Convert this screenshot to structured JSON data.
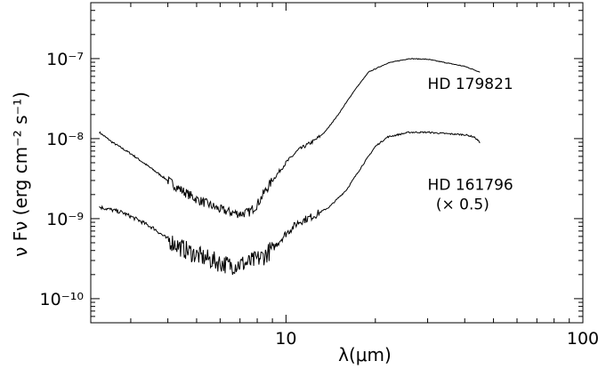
{
  "chart_data": {
    "type": "line",
    "title": "",
    "xlabel": "λ(μm)",
    "ylabel": "ν Fν (erg cm⁻² s⁻¹)",
    "xscale": "log",
    "yscale": "log",
    "xlim": [
      2.2,
      100
    ],
    "ylim": [
      5e-11,
      5e-07
    ],
    "grid": false,
    "x_ticks": [
      {
        "value": 10,
        "label": "10"
      },
      {
        "value": 100,
        "label": "100"
      }
    ],
    "y_ticks": [
      {
        "value": 1e-10,
        "label": "10⁻¹⁰"
      },
      {
        "value": 1e-09,
        "label": "10⁻⁹"
      },
      {
        "value": 1e-08,
        "label": "10⁻⁸"
      },
      {
        "value": 1e-07,
        "label": "10⁻⁷"
      }
    ],
    "series": [
      {
        "name": "HD 179821",
        "color": "#000000",
        "noise_dex": 0.06,
        "points": [
          [
            2.35,
            1.2e-08
          ],
          [
            2.6,
            9e-09
          ],
          [
            3.0,
            6.5e-09
          ],
          [
            3.5,
            4.3e-09
          ],
          [
            4.0,
            3e-09
          ],
          [
            4.5,
            2.2e-09
          ],
          [
            5.0,
            1.75e-09
          ],
          [
            5.5,
            1.5e-09
          ],
          [
            6.0,
            1.3e-09
          ],
          [
            6.5,
            1.2e-09
          ],
          [
            7.0,
            1.15e-09
          ],
          [
            7.5,
            1.2e-09
          ],
          [
            8.0,
            1.5e-09
          ],
          [
            8.5,
            2.2e-09
          ],
          [
            9.0,
            3e-09
          ],
          [
            10.0,
            5e-09
          ],
          [
            11.0,
            7.2e-09
          ],
          [
            12.5,
            9.5e-09
          ],
          [
            13.5,
            1.2e-08
          ],
          [
            15.0,
            2e-08
          ],
          [
            17.0,
            4e-08
          ],
          [
            19.0,
            6.8e-08
          ],
          [
            22.0,
            8.8e-08
          ],
          [
            26.0,
            1e-07
          ],
          [
            30.0,
            9.8e-08
          ],
          [
            35.0,
            8.8e-08
          ],
          [
            40.0,
            8e-08
          ],
          [
            45.0,
            6.8e-08
          ]
        ]
      },
      {
        "name": "HD 161796",
        "note": "(× 0.5)",
        "color": "#000000",
        "noise_dex": 0.12,
        "points": [
          [
            2.35,
            1.4e-09
          ],
          [
            2.8,
            1.2e-09
          ],
          [
            3.2,
            9.5e-10
          ],
          [
            3.6,
            7.5e-10
          ],
          [
            4.0,
            5.5e-10
          ],
          [
            4.5,
            4.2e-10
          ],
          [
            5.0,
            3.5e-10
          ],
          [
            5.5,
            3.1e-10
          ],
          [
            6.0,
            2.8e-10
          ],
          [
            6.5,
            2.6e-10
          ],
          [
            7.0,
            2.7e-10
          ],
          [
            7.5,
            2.8e-10
          ],
          [
            8.0,
            3.1e-10
          ],
          [
            8.5,
            3.5e-10
          ],
          [
            9.0,
            4.2e-10
          ],
          [
            10.0,
            6.5e-10
          ],
          [
            11.0,
            9e-10
          ],
          [
            12.5,
            1.1e-09
          ],
          [
            14.0,
            1.4e-09
          ],
          [
            16.0,
            2.3e-09
          ],
          [
            18.0,
            4.5e-09
          ],
          [
            20.0,
            8e-09
          ],
          [
            22.0,
            1.05e-08
          ],
          [
            26.0,
            1.2e-08
          ],
          [
            30.0,
            1.2e-08
          ],
          [
            35.0,
            1.15e-08
          ],
          [
            40.0,
            1.12e-08
          ],
          [
            43.0,
            1.05e-08
          ],
          [
            45.0,
            9e-09
          ]
        ]
      }
    ],
    "annotations": [
      {
        "text": "HD 179821",
        "x": 30,
        "y": 4.2e-08
      },
      {
        "text": "HD 161796",
        "x": 30,
        "y": 2.3e-09
      },
      {
        "text": "(× 0.5)",
        "x": 32,
        "y": 1.3e-09
      }
    ]
  }
}
